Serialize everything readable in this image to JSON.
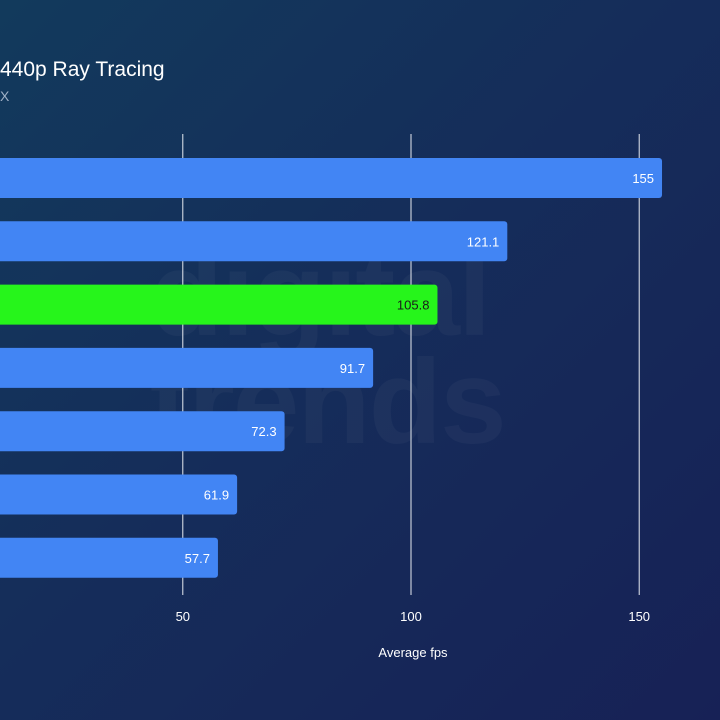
{
  "header": {
    "title": "440p Ray Tracing",
    "subtitle": "X"
  },
  "watermark": {
    "line1": "digital",
    "line2": "trends"
  },
  "chart_data": {
    "type": "bar",
    "orientation": "horizontal",
    "title": "440p Ray Tracing",
    "xlabel": "Average fps",
    "ylabel": "",
    "xlim": [
      0,
      155
    ],
    "xticks": [
      50,
      100,
      150
    ],
    "grid": true,
    "categories": [
      "",
      "",
      "",
      "",
      "",
      "",
      ""
    ],
    "values": [
      155,
      121.1,
      105.8,
      91.7,
      72.3,
      61.9,
      57.7
    ],
    "value_labels": [
      "155",
      "121.1",
      "105.8",
      "91.7",
      "72.3",
      "61.9",
      "57.7"
    ],
    "highlight_index": 2,
    "colors": {
      "bar": "#4285f4",
      "highlight": "#26f51b",
      "gridline": "#e6eaf0",
      "label_on_bar": "#ffffff",
      "label_on_highlight": "#1a1a1a",
      "axis_text": "#ffffff"
    }
  }
}
